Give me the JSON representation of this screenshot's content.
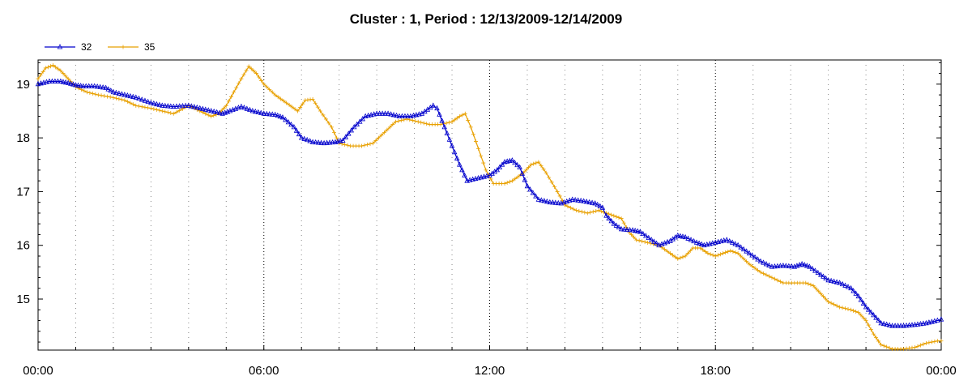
{
  "chart_data": {
    "type": "line",
    "title": "Cluster : 1, Period : 12/13/2009-12/14/2009",
    "xlabel": "",
    "ylabel": "",
    "x_unit": "hours since 00:00",
    "xlim": [
      0,
      24
    ],
    "ylim": [
      14.05,
      19.45
    ],
    "x_ticks": [
      {
        "value": 0,
        "label": "00:00"
      },
      {
        "value": 6,
        "label": "06:00"
      },
      {
        "value": 12,
        "label": "12:00"
      },
      {
        "value": 18,
        "label": "18:00"
      },
      {
        "value": 24,
        "label": "00:00"
      }
    ],
    "y_ticks": [
      {
        "value": 15,
        "label": "15"
      },
      {
        "value": 16,
        "label": "16"
      },
      {
        "value": 17,
        "label": "17"
      },
      {
        "value": 18,
        "label": "18"
      },
      {
        "value": 19,
        "label": "19"
      }
    ],
    "grid": "vertical dotted",
    "legend_position": "top-left",
    "series": [
      {
        "name": "32",
        "color": "#0000cc",
        "marker": "triangle",
        "points": [
          [
            0.0,
            19.0
          ],
          [
            0.3,
            19.05
          ],
          [
            0.6,
            19.05
          ],
          [
            0.8,
            19.02
          ],
          [
            1.0,
            18.98
          ],
          [
            1.2,
            18.96
          ],
          [
            1.5,
            18.96
          ],
          [
            1.8,
            18.93
          ],
          [
            2.0,
            18.85
          ],
          [
            2.3,
            18.8
          ],
          [
            2.6,
            18.75
          ],
          [
            3.0,
            18.65
          ],
          [
            3.3,
            18.6
          ],
          [
            3.6,
            18.58
          ],
          [
            4.0,
            18.6
          ],
          [
            4.3,
            18.55
          ],
          [
            4.6,
            18.5
          ],
          [
            4.9,
            18.45
          ],
          [
            5.1,
            18.5
          ],
          [
            5.4,
            18.58
          ],
          [
            5.7,
            18.5
          ],
          [
            6.0,
            18.45
          ],
          [
            6.3,
            18.43
          ],
          [
            6.5,
            18.38
          ],
          [
            6.8,
            18.2
          ],
          [
            7.0,
            18.0
          ],
          [
            7.3,
            17.92
          ],
          [
            7.6,
            17.9
          ],
          [
            7.9,
            17.92
          ],
          [
            8.1,
            17.95
          ],
          [
            8.4,
            18.2
          ],
          [
            8.7,
            18.4
          ],
          [
            9.0,
            18.45
          ],
          [
            9.3,
            18.45
          ],
          [
            9.6,
            18.4
          ],
          [
            9.9,
            18.4
          ],
          [
            10.2,
            18.45
          ],
          [
            10.5,
            18.6
          ],
          [
            10.6,
            18.55
          ],
          [
            10.8,
            18.2
          ],
          [
            11.0,
            17.85
          ],
          [
            11.2,
            17.5
          ],
          [
            11.4,
            17.2
          ],
          [
            11.7,
            17.25
          ],
          [
            12.0,
            17.3
          ],
          [
            12.2,
            17.4
          ],
          [
            12.4,
            17.55
          ],
          [
            12.6,
            17.58
          ],
          [
            12.8,
            17.45
          ],
          [
            13.0,
            17.1
          ],
          [
            13.3,
            16.85
          ],
          [
            13.6,
            16.8
          ],
          [
            13.9,
            16.78
          ],
          [
            14.2,
            16.85
          ],
          [
            14.5,
            16.82
          ],
          [
            14.8,
            16.78
          ],
          [
            15.0,
            16.7
          ],
          [
            15.1,
            16.55
          ],
          [
            15.3,
            16.4
          ],
          [
            15.5,
            16.3
          ],
          [
            15.8,
            16.28
          ],
          [
            16.0,
            16.25
          ],
          [
            16.3,
            16.1
          ],
          [
            16.5,
            16.0
          ],
          [
            16.8,
            16.08
          ],
          [
            17.0,
            16.18
          ],
          [
            17.2,
            16.15
          ],
          [
            17.5,
            16.05
          ],
          [
            17.7,
            16.0
          ],
          [
            18.0,
            16.05
          ],
          [
            18.3,
            16.1
          ],
          [
            18.6,
            16.0
          ],
          [
            18.9,
            15.85
          ],
          [
            19.2,
            15.7
          ],
          [
            19.5,
            15.6
          ],
          [
            19.8,
            15.62
          ],
          [
            20.1,
            15.6
          ],
          [
            20.3,
            15.65
          ],
          [
            20.5,
            15.6
          ],
          [
            20.8,
            15.45
          ],
          [
            21.0,
            15.35
          ],
          [
            21.3,
            15.3
          ],
          [
            21.6,
            15.2
          ],
          [
            21.8,
            15.05
          ],
          [
            22.0,
            14.85
          ],
          [
            22.2,
            14.7
          ],
          [
            22.4,
            14.55
          ],
          [
            22.7,
            14.5
          ],
          [
            23.0,
            14.5
          ],
          [
            23.3,
            14.52
          ],
          [
            23.6,
            14.55
          ],
          [
            23.9,
            14.6
          ],
          [
            24.0,
            14.62
          ]
        ]
      },
      {
        "name": "35",
        "color": "#e8a000",
        "marker": "cross",
        "points": [
          [
            0.0,
            19.1
          ],
          [
            0.2,
            19.3
          ],
          [
            0.4,
            19.35
          ],
          [
            0.6,
            19.25
          ],
          [
            0.8,
            19.1
          ],
          [
            1.0,
            18.95
          ],
          [
            1.3,
            18.85
          ],
          [
            1.6,
            18.8
          ],
          [
            2.0,
            18.75
          ],
          [
            2.3,
            18.7
          ],
          [
            2.6,
            18.6
          ],
          [
            3.0,
            18.55
          ],
          [
            3.3,
            18.5
          ],
          [
            3.6,
            18.45
          ],
          [
            4.0,
            18.6
          ],
          [
            4.3,
            18.5
          ],
          [
            4.6,
            18.4
          ],
          [
            4.8,
            18.45
          ],
          [
            5.0,
            18.6
          ],
          [
            5.2,
            18.85
          ],
          [
            5.4,
            19.1
          ],
          [
            5.6,
            19.33
          ],
          [
            5.8,
            19.2
          ],
          [
            6.0,
            19.0
          ],
          [
            6.3,
            18.8
          ],
          [
            6.6,
            18.65
          ],
          [
            6.9,
            18.5
          ],
          [
            7.1,
            18.7
          ],
          [
            7.3,
            18.72
          ],
          [
            7.5,
            18.5
          ],
          [
            7.8,
            18.2
          ],
          [
            8.0,
            17.9
          ],
          [
            8.3,
            17.85
          ],
          [
            8.6,
            17.85
          ],
          [
            8.9,
            17.9
          ],
          [
            9.2,
            18.1
          ],
          [
            9.5,
            18.3
          ],
          [
            9.8,
            18.35
          ],
          [
            10.1,
            18.3
          ],
          [
            10.4,
            18.25
          ],
          [
            10.7,
            18.25
          ],
          [
            11.0,
            18.3
          ],
          [
            11.2,
            18.4
          ],
          [
            11.35,
            18.45
          ],
          [
            11.5,
            18.2
          ],
          [
            11.7,
            17.8
          ],
          [
            11.9,
            17.4
          ],
          [
            12.1,
            17.15
          ],
          [
            12.4,
            17.15
          ],
          [
            12.6,
            17.2
          ],
          [
            12.9,
            17.35
          ],
          [
            13.1,
            17.5
          ],
          [
            13.3,
            17.55
          ],
          [
            13.5,
            17.35
          ],
          [
            13.8,
            17.0
          ],
          [
            14.0,
            16.75
          ],
          [
            14.3,
            16.65
          ],
          [
            14.6,
            16.6
          ],
          [
            14.9,
            16.65
          ],
          [
            15.1,
            16.6
          ],
          [
            15.3,
            16.55
          ],
          [
            15.5,
            16.5
          ],
          [
            15.7,
            16.25
          ],
          [
            15.9,
            16.1
          ],
          [
            16.2,
            16.05
          ],
          [
            16.5,
            16.0
          ],
          [
            16.8,
            15.85
          ],
          [
            17.0,
            15.75
          ],
          [
            17.2,
            15.8
          ],
          [
            17.4,
            15.95
          ],
          [
            17.6,
            15.95
          ],
          [
            17.8,
            15.85
          ],
          [
            18.0,
            15.8
          ],
          [
            18.2,
            15.85
          ],
          [
            18.4,
            15.9
          ],
          [
            18.6,
            15.85
          ],
          [
            18.9,
            15.65
          ],
          [
            19.2,
            15.5
          ],
          [
            19.5,
            15.4
          ],
          [
            19.8,
            15.3
          ],
          [
            20.1,
            15.3
          ],
          [
            20.4,
            15.3
          ],
          [
            20.6,
            15.25
          ],
          [
            20.8,
            15.1
          ],
          [
            21.0,
            14.95
          ],
          [
            21.3,
            14.85
          ],
          [
            21.6,
            14.8
          ],
          [
            21.8,
            14.75
          ],
          [
            22.0,
            14.6
          ],
          [
            22.2,
            14.35
          ],
          [
            22.4,
            14.15
          ],
          [
            22.7,
            14.07
          ],
          [
            23.0,
            14.07
          ],
          [
            23.3,
            14.1
          ],
          [
            23.6,
            14.18
          ],
          [
            23.9,
            14.22
          ],
          [
            24.0,
            14.22
          ]
        ]
      }
    ]
  }
}
